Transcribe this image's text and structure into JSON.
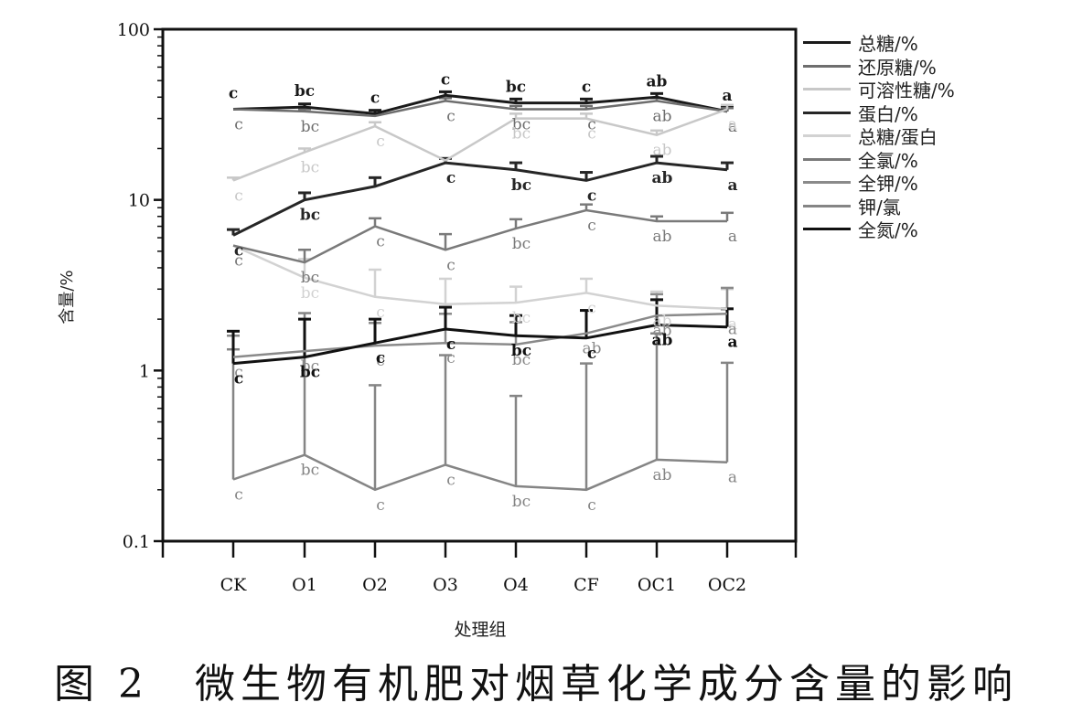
{
  "caption": "图 2　微生物有机肥对烟草化学成分含量的影响",
  "chart_data": {
    "type": "line",
    "xlabel": "处理组",
    "ylabel": "含量/%",
    "yscale": "log",
    "ylim": [
      0.1,
      100
    ],
    "yticks": [
      "0.1",
      "1",
      "10",
      "100"
    ],
    "categories": [
      "CK",
      "O1",
      "O2",
      "O3",
      "O4",
      "CF",
      "OC1",
      "OC2"
    ],
    "legend_position": "right",
    "series": [
      {
        "name": "总糖/%",
        "color": "#1a1a1a",
        "bold": true,
        "values": [
          34,
          35,
          32,
          41,
          37,
          37,
          40,
          33
        ],
        "err": [
          0,
          1.5,
          1.5,
          2,
          2,
          2,
          2,
          2
        ],
        "labels": [
          "c",
          "bc",
          "c",
          "c",
          "bc",
          "c",
          "ab",
          "a"
        ],
        "label_pos": "above"
      },
      {
        "name": "还原糖/%",
        "color": "#6e6e6e",
        "bold": false,
        "values": [
          34,
          33,
          31,
          38,
          34,
          34,
          38,
          33
        ],
        "err": [
          0,
          1,
          1,
          1.5,
          1.5,
          1.5,
          1.5,
          1.5
        ],
        "labels": [
          "c",
          "bc",
          "",
          "c",
          "bc",
          "c",
          "ab",
          "a"
        ],
        "label_pos": "below"
      },
      {
        "name": "可溶性糖/%",
        "color": "#c8c8c8",
        "bold": false,
        "values": [
          13,
          19,
          27,
          17,
          30,
          30,
          24,
          34
        ],
        "err": [
          0.5,
          1,
          1.5,
          0,
          2,
          2,
          1.5,
          2
        ],
        "labels": [
          "c",
          "bc",
          "c",
          "",
          "bc",
          "c",
          "ab",
          "a"
        ],
        "label_pos": "below"
      },
      {
        "name": "蛋白/%",
        "color": "#262626",
        "bold": true,
        "values": [
          6.2,
          10,
          12,
          16.5,
          15,
          13,
          16.5,
          15
        ],
        "err": [
          0.5,
          1,
          1.5,
          1,
          1.5,
          1.5,
          1.5,
          1.5
        ],
        "labels": [
          "c",
          "bc",
          "",
          "c",
          "bc",
          "c",
          "ab",
          "a"
        ],
        "label_pos": "below"
      },
      {
        "name": "总糖/蛋白",
        "color": "#d2d2d2",
        "bold": false,
        "values": [
          5.4,
          3.5,
          2.7,
          2.45,
          2.5,
          2.85,
          2.4,
          2.3
        ],
        "err": [
          0,
          1,
          1.2,
          1,
          0.6,
          0.6,
          0.5,
          0.7
        ],
        "labels": [
          "c",
          "bc",
          "c",
          "",
          "bc",
          "c",
          "ab",
          "a"
        ],
        "label_pos": "below"
      },
      {
        "name": "全氯/%",
        "color": "#7a7a7a",
        "bold": false,
        "values": [
          5.4,
          4.3,
          7,
          5.1,
          6.8,
          8.7,
          7.5,
          7.5
        ],
        "err": [
          0,
          0.8,
          0.8,
          1.2,
          0.9,
          0.7,
          0.5,
          0.9
        ],
        "labels": [
          "c",
          "bc",
          "c",
          "c",
          "bc",
          "c",
          "ab",
          "a"
        ],
        "label_pos": "below"
      },
      {
        "name": "全钾/%",
        "color": "#8a8a8a",
        "bold": false,
        "values": [
          1.2,
          1.3,
          1.4,
          1.45,
          1.42,
          1.65,
          2.1,
          2.15
        ],
        "err": [
          0.4,
          0.7,
          0.5,
          0.7,
          0.5,
          0.6,
          0.7,
          0.9
        ],
        "labels": [
          "c",
          "bc",
          "c",
          "c",
          "bc",
          "ab",
          "ab",
          "a"
        ],
        "label_pos": "below"
      },
      {
        "name": "钾/氯",
        "color": "#858585",
        "bold": false,
        "values": [
          0.23,
          0.32,
          0.2,
          0.28,
          0.21,
          0.2,
          0.3,
          0.29
        ],
        "err": [
          1.1,
          1.85,
          0.62,
          0.95,
          0.5,
          0.9,
          1.35,
          0.82
        ],
        "labels": [
          "c",
          "bc",
          "c",
          "c",
          "bc",
          "c",
          "ab",
          "a"
        ],
        "label_pos": "below"
      },
      {
        "name": "全氮/%",
        "color": "#111111",
        "bold": true,
        "values": [
          1.1,
          1.2,
          1.45,
          1.75,
          1.6,
          1.55,
          1.85,
          1.8
        ],
        "err": [
          0.6,
          0.8,
          0.55,
          0.6,
          0.5,
          0.7,
          0.75,
          0.5
        ],
        "labels": [
          "c",
          "bc",
          "c",
          "c",
          "bc",
          "c",
          "ab",
          "a"
        ],
        "label_pos": "below"
      }
    ]
  }
}
